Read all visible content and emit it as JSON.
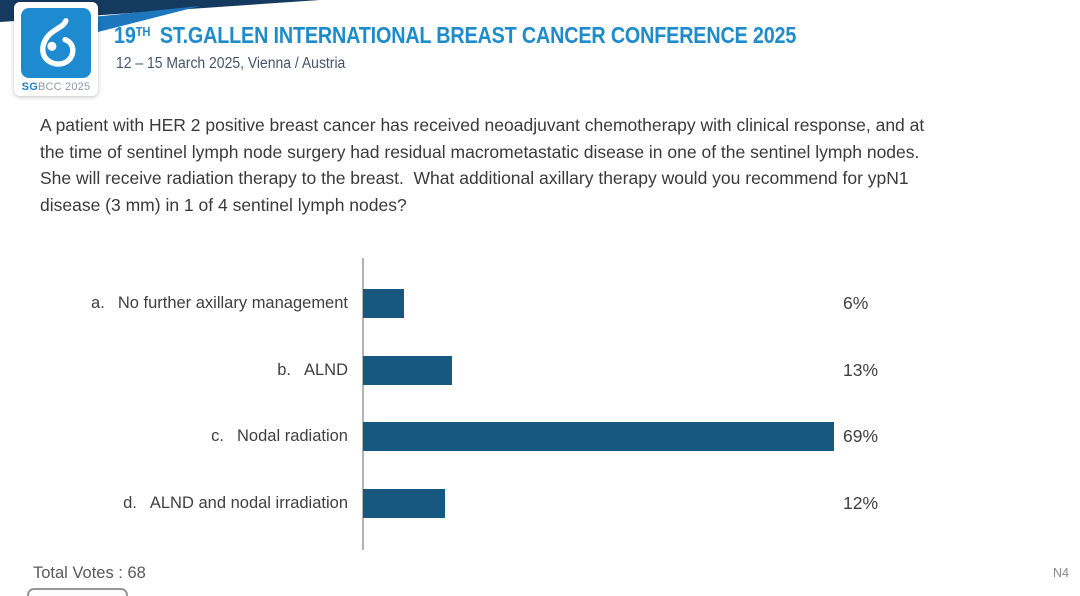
{
  "header": {
    "logo": {
      "icon": "sgbcc-breast-logo-icon",
      "badge_primary": "SG",
      "badge_secondary": "BCC 2025"
    },
    "title_num": "19",
    "title_sup": "TH",
    "title_rest": " ST.GALLEN INTERNATIONAL BREAST CANCER CONFERENCE 2025",
    "subtitle": "12 – 15 March 2025, Vienna / Austria"
  },
  "question": "A patient with HER 2 positive breast cancer has received neoadjuvant chemotherapy with clinical response, and at the time of sentinel lymph node surgery had residual macrometastatic disease in one of the sentinel lymph nodes.  She will receive radiation therapy to the breast.  What additional axillary therapy would you recommend for ypN1 disease (3 mm) in 1 of 4 sentinel lymph nodes?",
  "chart_data": {
    "type": "bar",
    "orientation": "horizontal",
    "option_letters": [
      "a.",
      "b.",
      "c.",
      "d."
    ],
    "categories": [
      "No further axillary management",
      "ALND",
      "Nodal radiation",
      "ALND and nodal irradiation"
    ],
    "values": [
      6,
      13,
      69,
      12
    ],
    "value_labels": [
      "6%",
      "13%",
      "69%",
      "12%"
    ],
    "xlim": [
      0,
      100
    ],
    "bar_color": "#16587f",
    "axis_color": "#b3b3b3",
    "gridlines": false,
    "legend": false
  },
  "footer": {
    "total_votes": "Total Votes : 68",
    "slide_code": "N4"
  }
}
